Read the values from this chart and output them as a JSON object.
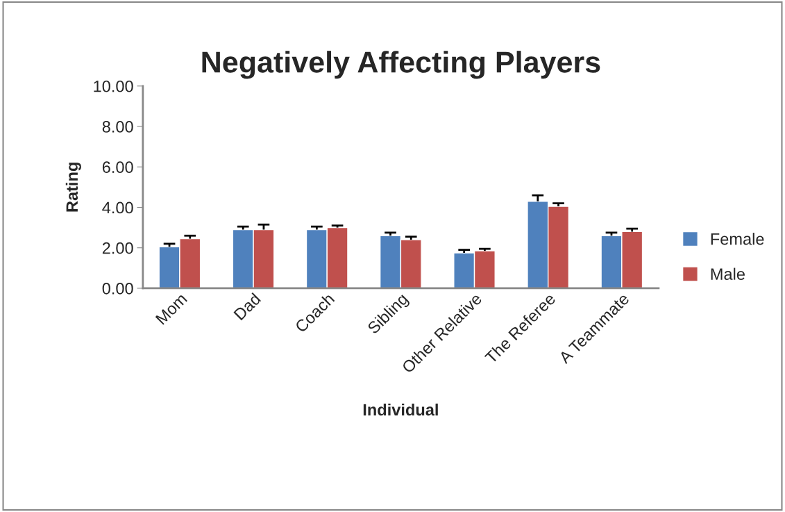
{
  "chart_data": {
    "type": "bar",
    "title": "Negatively Affecting Players",
    "xlabel": "Individual",
    "ylabel": "Rating",
    "categories": [
      "Mom",
      "Dad",
      "Coach",
      "Sibling",
      "Other Relative",
      "The Referee",
      "A Teammate"
    ],
    "series": [
      {
        "name": "Female",
        "color": "#4f81bd",
        "values": [
          2.05,
          2.9,
          2.9,
          2.6,
          1.75,
          4.3,
          2.6
        ],
        "errors": [
          [
            2.05,
            2.2
          ],
          [
            2.9,
            3.05
          ],
          [
            2.9,
            3.05
          ],
          [
            2.6,
            2.75
          ],
          [
            1.75,
            1.9
          ],
          [
            4.3,
            4.6
          ],
          [
            2.6,
            2.75
          ]
        ]
      },
      {
        "name": "Male",
        "color": "#c0504d",
        "values": [
          2.45,
          2.9,
          3.0,
          2.4,
          1.85,
          4.05,
          2.8
        ],
        "errors": [
          [
            2.45,
            2.6
          ],
          [
            2.9,
            3.15
          ],
          [
            3.0,
            3.1
          ],
          [
            2.4,
            2.55
          ],
          [
            1.85,
            1.95
          ],
          [
            4.05,
            4.2
          ],
          [
            2.8,
            2.95
          ]
        ]
      }
    ],
    "ylim": [
      0,
      10
    ],
    "yticks": [
      {
        "value": 0,
        "label": "0.00"
      },
      {
        "value": 2,
        "label": "2.00"
      },
      {
        "value": 4,
        "label": "4.00"
      },
      {
        "value": 6,
        "label": "6.00"
      },
      {
        "value": 8,
        "label": "8.00"
      },
      {
        "value": 10,
        "label": "10.00"
      }
    ],
    "grid": false,
    "legend": "right"
  }
}
